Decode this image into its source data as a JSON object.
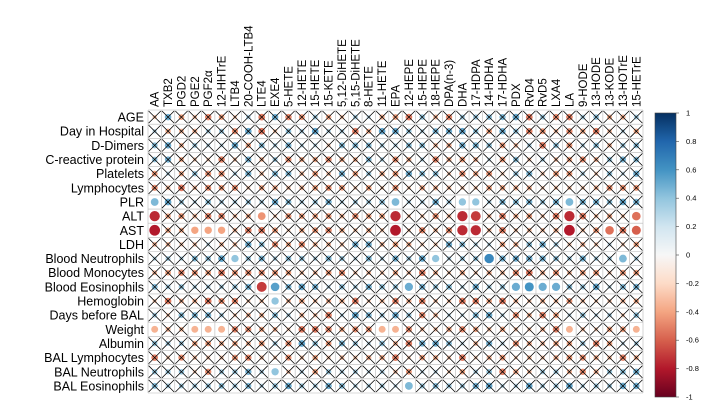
{
  "chart_data": {
    "type": "heatmap",
    "title": "",
    "xlabel": "",
    "ylabel": "",
    "columns": [
      "AA",
      "TXB2",
      "PGD2",
      "PGE2",
      "PGF2α",
      "12-HHTrE",
      "LTB4",
      "20-COOH-LTB4",
      "LTE4",
      "EXE4",
      "5-HETE",
      "12-HETE",
      "15-HETE",
      "15-KETE",
      "5,12-DiHETE",
      "5,15-DiHETE",
      "8-HETE",
      "11-HETE",
      "EPA",
      "12-HEPE",
      "15-HEPE",
      "18-HEPE",
      "DPA(n-3)",
      "DHA",
      "17-HDPA",
      "14-HDHA",
      "17-HDHA",
      "PDX",
      "RvD4",
      "RvD5",
      "LXA4",
      "LA",
      "9-HODE",
      "13-HODE",
      "13-KODE",
      "13-HOTrE",
      "15-HETrE"
    ],
    "rows": [
      "AGE",
      "Day in Hospital",
      "D-Dimers",
      "C-reactive protein",
      "Platelets",
      "Lymphocytes",
      "PLR",
      "ALT",
      "AST",
      "LDH",
      "Blood Neutrophils",
      "Blood Monocytes",
      "Blood Eosinophils",
      "Hemoglobin",
      "Days before BAL",
      "Weight",
      "Albumin",
      "BAL Lymphocytes",
      "BAL Neutrophils",
      "BAL Eosinophils"
    ],
    "significant_cells": [
      {
        "row": "PLR",
        "col": "AA",
        "value": 0.45
      },
      {
        "row": "PLR",
        "col": "EPA",
        "value": 0.45
      },
      {
        "row": "PLR",
        "col": "DHA",
        "value": 0.4
      },
      {
        "row": "PLR",
        "col": "17-HDPA",
        "value": 0.4
      },
      {
        "row": "PLR",
        "col": "LA",
        "value": 0.45
      },
      {
        "row": "ALT",
        "col": "AA",
        "value": -0.75
      },
      {
        "row": "ALT",
        "col": "LTE4",
        "value": -0.45
      },
      {
        "row": "ALT",
        "col": "EPA",
        "value": -0.75
      },
      {
        "row": "ALT",
        "col": "DHA",
        "value": -0.75
      },
      {
        "row": "ALT",
        "col": "17-HDPA",
        "value": -0.7
      },
      {
        "row": "ALT",
        "col": "LA",
        "value": -0.75
      },
      {
        "row": "ALT",
        "col": "15-HETrE",
        "value": -0.55
      },
      {
        "row": "AST",
        "col": "AA",
        "value": -0.8
      },
      {
        "row": "AST",
        "col": "PGE2",
        "value": -0.4
      },
      {
        "row": "AST",
        "col": "PGF2α",
        "value": -0.4
      },
      {
        "row": "AST",
        "col": "12-HHTrE",
        "value": -0.4
      },
      {
        "row": "AST",
        "col": "EPA",
        "value": -0.8
      },
      {
        "row": "AST",
        "col": "DHA",
        "value": -0.75
      },
      {
        "row": "AST",
        "col": "17-HDPA",
        "value": -0.75
      },
      {
        "row": "AST",
        "col": "LA",
        "value": -0.8
      },
      {
        "row": "AST",
        "col": "13-KODE",
        "value": -0.55
      },
      {
        "row": "AST",
        "col": "15-HETrE",
        "value": -0.6
      },
      {
        "row": "Blood Neutrophils",
        "col": "LTB4",
        "value": 0.4
      },
      {
        "row": "Blood Neutrophils",
        "col": "18-HEPE",
        "value": 0.4
      },
      {
        "row": "Blood Neutrophils",
        "col": "14-HDHA",
        "value": 0.65
      },
      {
        "row": "Blood Neutrophils",
        "col": "13-HOTrE",
        "value": 0.45
      },
      {
        "row": "Blood Eosinophils",
        "col": "LTE4",
        "value": -0.7
      },
      {
        "row": "Blood Eosinophils",
        "col": "EXE4",
        "value": 0.55
      },
      {
        "row": "Blood Eosinophils",
        "col": "12-HEPE",
        "value": 0.5
      },
      {
        "row": "Blood Eosinophils",
        "col": "PDX",
        "value": 0.5
      },
      {
        "row": "Blood Eosinophils",
        "col": "RvD4",
        "value": 0.6
      },
      {
        "row": "Blood Eosinophils",
        "col": "RvD5",
        "value": 0.5
      },
      {
        "row": "Blood Eosinophils",
        "col": "LXA4",
        "value": 0.5
      },
      {
        "row": "Hemoglobin",
        "col": "EXE4",
        "value": 0.4
      },
      {
        "row": "Weight",
        "col": "AA",
        "value": -0.35
      },
      {
        "row": "Weight",
        "col": "PGE2",
        "value": -0.35
      },
      {
        "row": "Weight",
        "col": "PGF2α",
        "value": -0.35
      },
      {
        "row": "Weight",
        "col": "12-HHTrE",
        "value": -0.35
      },
      {
        "row": "Weight",
        "col": "11-HETE",
        "value": -0.35
      },
      {
        "row": "Weight",
        "col": "EPA",
        "value": -0.35
      },
      {
        "row": "Weight",
        "col": "LA",
        "value": -0.35
      },
      {
        "row": "Weight",
        "col": "15-HETrE",
        "value": -0.35
      },
      {
        "row": "BAL Neutrophils",
        "col": "EXE4",
        "value": 0.4
      },
      {
        "row": "BAL Eosinophils",
        "col": "12-HEPE",
        "value": 0.45
      }
    ],
    "nonsignificant_pattern": [
      {
        "row": "AGE",
        "sign": "mixed"
      },
      {
        "row": "Day in Hospital",
        "sign": "mixed"
      },
      {
        "row": "D-Dimers",
        "sign": "mixed"
      },
      {
        "row": "C-reactive protein",
        "sign": "mixed"
      },
      {
        "row": "Platelets",
        "sign": "mixed"
      },
      {
        "row": "Lymphocytes",
        "sign": "negative"
      },
      {
        "row": "PLR",
        "sign": "positive"
      },
      {
        "row": "ALT",
        "sign": "negative"
      },
      {
        "row": "AST",
        "sign": "negative"
      },
      {
        "row": "LDH",
        "sign": "mixed"
      },
      {
        "row": "Blood Neutrophils",
        "sign": "positive"
      },
      {
        "row": "Blood Monocytes",
        "sign": "negative"
      },
      {
        "row": "Blood Eosinophils",
        "sign": "positive"
      },
      {
        "row": "Hemoglobin",
        "sign": "negative"
      },
      {
        "row": "Days before BAL",
        "sign": "mixed"
      },
      {
        "row": "Weight",
        "sign": "negative"
      },
      {
        "row": "Albumin",
        "sign": "mixed"
      },
      {
        "row": "BAL Lymphocytes",
        "sign": "negative"
      },
      {
        "row": "BAL Neutrophils",
        "sign": "mixed"
      },
      {
        "row": "BAL Eosinophils",
        "sign": "positive"
      }
    ],
    "colorbar": {
      "range": [
        -1,
        1
      ],
      "ticks": [
        "1",
        "0.8",
        "0.6",
        "0.4",
        "0.2",
        "0",
        "-0.2",
        "-0.4",
        "-0.6",
        "-0.8",
        "-1"
      ],
      "colors": [
        "#67001f",
        "#b2182b",
        "#d6604d",
        "#f4a582",
        "#fddbc7",
        "#f7f7f7",
        "#d1e5f0",
        "#92c5de",
        "#4393c3",
        "#2166ac",
        "#053061"
      ]
    },
    "insignificant_mark": "cross",
    "grid": true
  }
}
